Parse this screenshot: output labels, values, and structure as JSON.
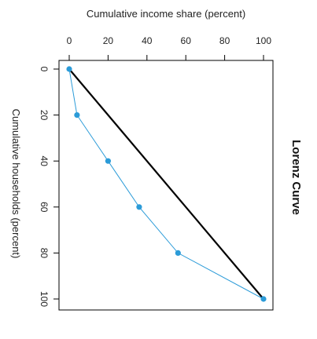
{
  "chart_data": {
    "type": "line",
    "title": "Lorenz Curve",
    "xlabel": "Cumulative income share (percent)",
    "ylabel": "Cumulative households (percent)",
    "xlim": [
      0,
      100
    ],
    "ylim": [
      0,
      100
    ],
    "x_ticks": [
      0,
      20,
      40,
      60,
      80,
      100
    ],
    "y_ticks": [
      0,
      20,
      40,
      60,
      80,
      100
    ],
    "y_axis_reversed": true,
    "grid": false,
    "series": [
      {
        "role": "lorenz-curve",
        "color": "#2b9bd8",
        "marker_color": "#2b9bd8",
        "points": [
          {
            "x": 0,
            "y": 0
          },
          {
            "x": 4,
            "y": 20
          },
          {
            "x": 20,
            "y": 40
          },
          {
            "x": 36,
            "y": 60
          },
          {
            "x": 56,
            "y": 80
          },
          {
            "x": 100,
            "y": 100
          }
        ]
      },
      {
        "role": "line-of-equality",
        "color": "#000000",
        "points": [
          {
            "x": 0,
            "y": 0
          },
          {
            "x": 100,
            "y": 100
          }
        ]
      }
    ]
  }
}
